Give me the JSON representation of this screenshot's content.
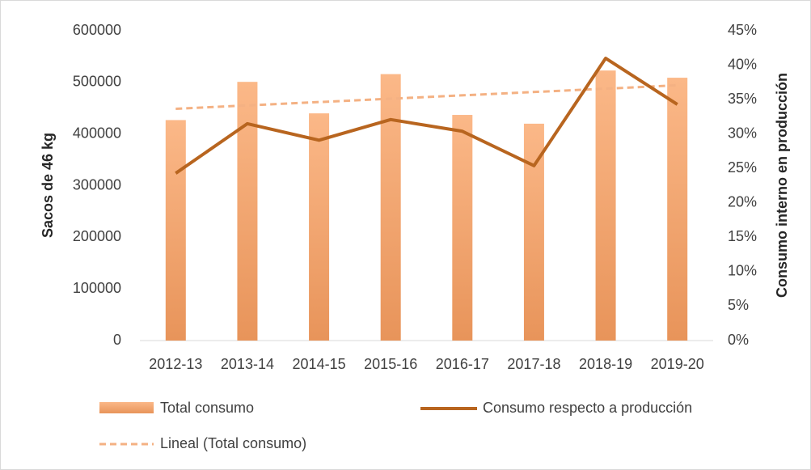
{
  "chart_data": {
    "type": "bar",
    "categories": [
      "2012-13",
      "2013-14",
      "2014-15",
      "2015-16",
      "2016-17",
      "2017-18",
      "2018-19",
      "2019-20"
    ],
    "y_label": "Sacos de 46 kg",
    "y2_label": "Consumo interno en producción",
    "ylim": [
      0,
      600000
    ],
    "yticks": [
      0,
      100000,
      200000,
      300000,
      400000,
      500000,
      600000
    ],
    "y2lim": [
      0,
      45
    ],
    "y2ticks": [
      {
        "value": 0,
        "label": "0%"
      },
      {
        "value": 5,
        "label": "5%"
      },
      {
        "value": 10,
        "label": "10%"
      },
      {
        "value": 15,
        "label": "15%"
      },
      {
        "value": 20,
        "label": "20%"
      },
      {
        "value": 25,
        "label": "25%"
      },
      {
        "value": 30,
        "label": "30%"
      },
      {
        "value": 35,
        "label": "35%"
      },
      {
        "value": 40,
        "label": "40%"
      },
      {
        "value": 45,
        "label": "45%"
      }
    ],
    "series": [
      {
        "name": "Total consumo",
        "type": "bar",
        "color": "#f4a26a",
        "values": [
          427000,
          501000,
          440000,
          516000,
          437000,
          420000,
          523000,
          509000
        ]
      },
      {
        "name": "Consumo respecto a producción",
        "type": "line",
        "axis": "y2",
        "color": "#b8651f",
        "values": [
          24.3,
          31.5,
          29.1,
          32.1,
          30.4,
          25.4,
          41.0,
          34.3
        ]
      }
    ],
    "trendline": {
      "name": "Lineal (Total consumo)",
      "of_series": 0,
      "color": "#f4b183",
      "dashed": true
    }
  }
}
